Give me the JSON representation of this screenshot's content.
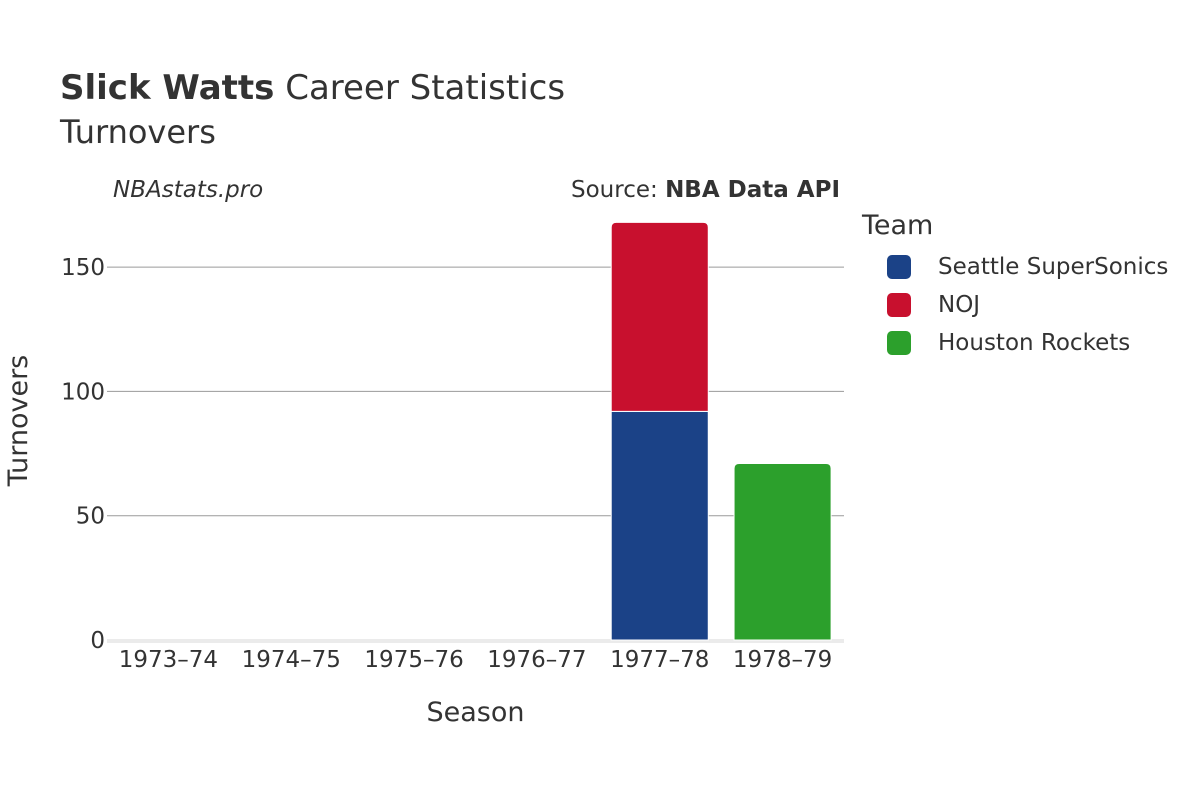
{
  "header": {
    "title_bold": "Slick Watts",
    "title_rest": " Career Statistics",
    "subtitle": "Turnovers",
    "site": "NBAstats.pro",
    "source_prefix": "Source: ",
    "source_bold": "NBA Data API"
  },
  "legend": {
    "title": "Team",
    "items": [
      {
        "label": "Seattle SuperSonics",
        "color": "#1b4287"
      },
      {
        "label": "NOJ",
        "color": "#c8102e"
      },
      {
        "label": "Houston Rockets",
        "color": "#2ca02c"
      }
    ]
  },
  "chart_data": {
    "type": "bar",
    "stacked": true,
    "xlabel": "Season",
    "ylabel": "Turnovers",
    "categories": [
      "1973–74",
      "1974–75",
      "1975–76",
      "1976–77",
      "1977–78",
      "1978–79"
    ],
    "ylim": [
      0,
      175
    ],
    "yticks": [
      0,
      50,
      100,
      150
    ],
    "grid": true,
    "legend_position": "right",
    "series": [
      {
        "name": "Seattle SuperSonics",
        "color": "#1b4287",
        "values": [
          0,
          0,
          0,
          0,
          92,
          0
        ]
      },
      {
        "name": "NOJ",
        "color": "#c8102e",
        "values": [
          0,
          0,
          0,
          0,
          76,
          0
        ]
      },
      {
        "name": "Houston Rockets",
        "color": "#2ca02c",
        "values": [
          0,
          0,
          0,
          0,
          0,
          71
        ]
      }
    ]
  }
}
